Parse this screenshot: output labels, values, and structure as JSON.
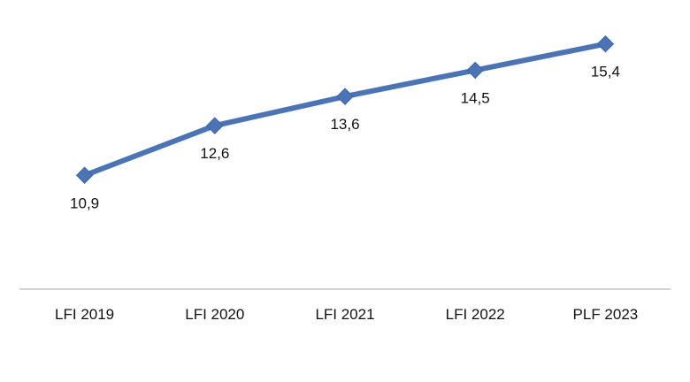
{
  "chart_data": {
    "type": "line",
    "categories": [
      "LFI 2019",
      "LFI 2020",
      "LFI 2021",
      "LFI 2022",
      "PLF 2023"
    ],
    "series": [
      {
        "values": [
          10.9,
          12.6,
          13.6,
          14.5,
          15.4
        ],
        "labels": [
          "10,9",
          "12,6",
          "13,6",
          "14,5",
          "15,4"
        ],
        "color": "#4a74b5",
        "marker": "diamond"
      }
    ],
    "title": "",
    "xlabel": "",
    "ylabel": "",
    "ylim": [
      7.0,
      16.3
    ],
    "grid": false,
    "legend": "none"
  }
}
